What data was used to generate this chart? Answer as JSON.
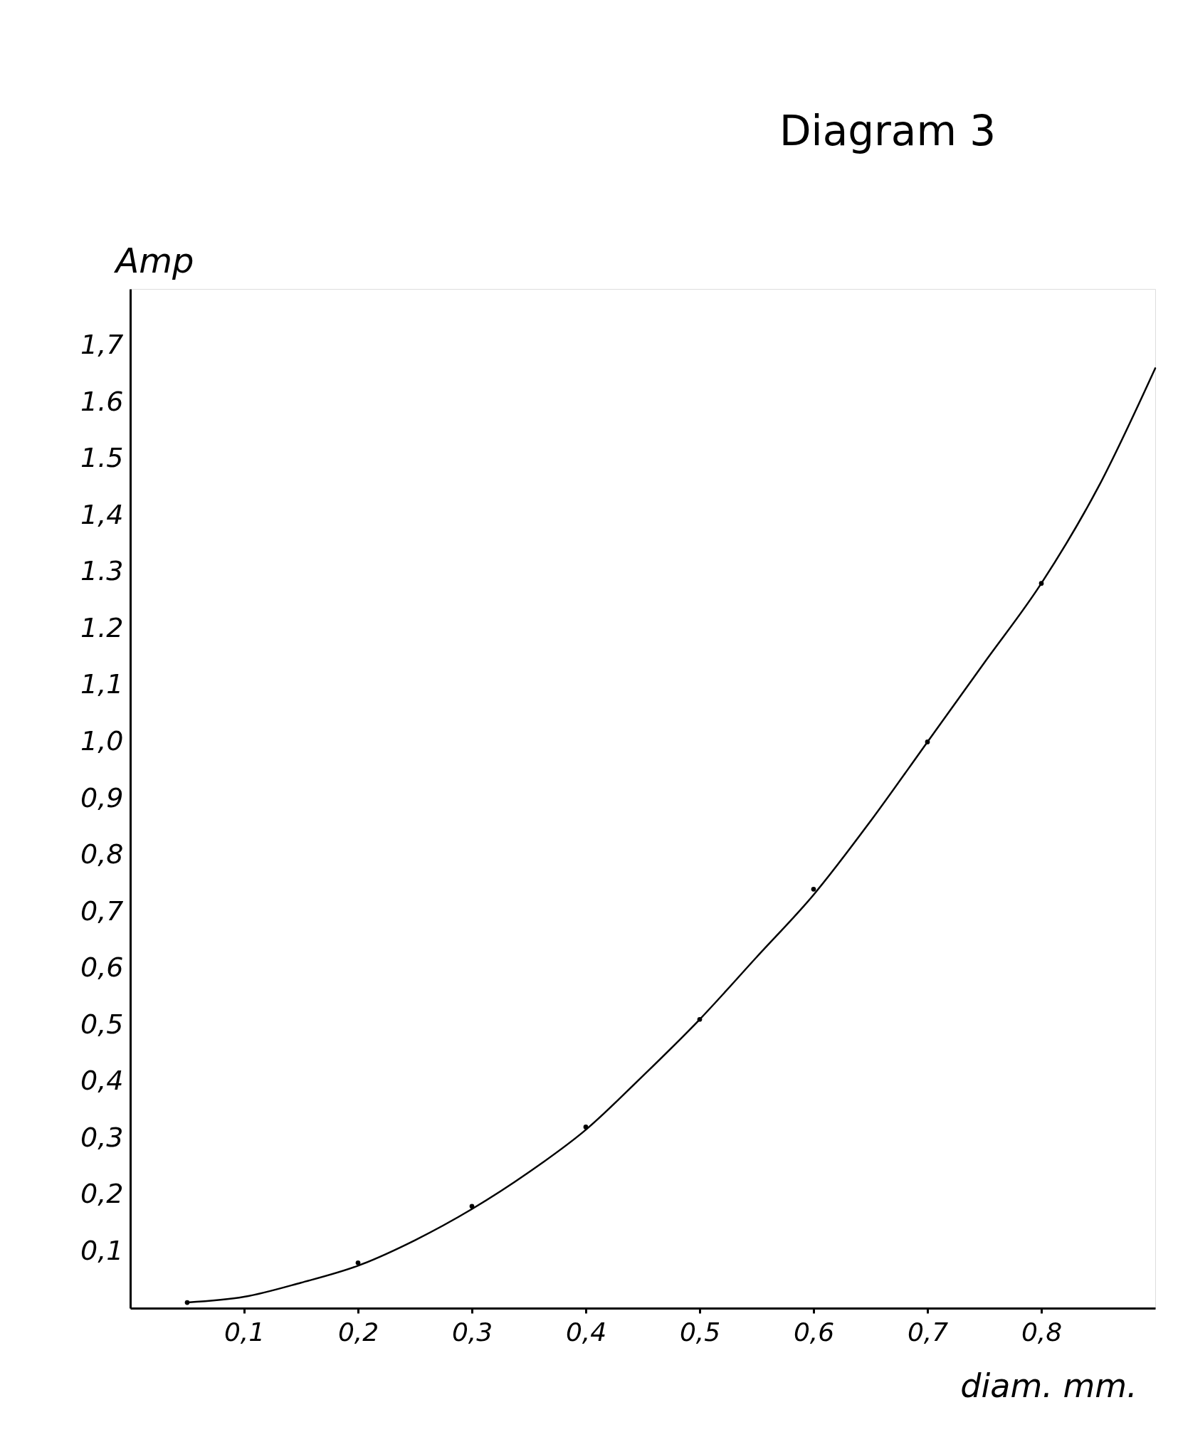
{
  "chart_data": {
    "type": "line",
    "title": "Diagram 3",
    "xlabel": "diam. mm.",
    "ylabel": "Amp",
    "xlim": [
      0,
      0.9
    ],
    "ylim": [
      0,
      1.8
    ],
    "xticks": [
      {
        "value": 0.1,
        "label": "0,1"
      },
      {
        "value": 0.2,
        "label": "0,2"
      },
      {
        "value": 0.3,
        "label": "0,3"
      },
      {
        "value": 0.4,
        "label": "0,4"
      },
      {
        "value": 0.5,
        "label": "0,5"
      },
      {
        "value": 0.6,
        "label": "0,6"
      },
      {
        "value": 0.7,
        "label": "0,7"
      },
      {
        "value": 0.8,
        "label": "0,8"
      }
    ],
    "yticks": [
      {
        "value": 0.1,
        "label": "0,1"
      },
      {
        "value": 0.2,
        "label": "0,2"
      },
      {
        "value": 0.3,
        "label": "0,3"
      },
      {
        "value": 0.4,
        "label": "0,4"
      },
      {
        "value": 0.5,
        "label": "0,5"
      },
      {
        "value": 0.6,
        "label": "0,6"
      },
      {
        "value": 0.7,
        "label": "0,7"
      },
      {
        "value": 0.8,
        "label": "0,8"
      },
      {
        "value": 0.9,
        "label": "0,9"
      },
      {
        "value": 1.0,
        "label": "1,0"
      },
      {
        "value": 1.1,
        "label": "1,1"
      },
      {
        "value": 1.2,
        "label": "1.2"
      },
      {
        "value": 1.3,
        "label": "1.3"
      },
      {
        "value": 1.4,
        "label": "1,4"
      },
      {
        "value": 1.5,
        "label": "1.5"
      },
      {
        "value": 1.6,
        "label": "1.6"
      },
      {
        "value": 1.7,
        "label": "1,7"
      }
    ],
    "grid": false,
    "series": [
      {
        "color": "#000000",
        "x": [
          0.05,
          0.1,
          0.15,
          0.2,
          0.25,
          0.3,
          0.35,
          0.4,
          0.45,
          0.5,
          0.55,
          0.6,
          0.65,
          0.7,
          0.75,
          0.8,
          0.85,
          0.9
        ],
        "values": [
          0.01,
          0.02,
          0.045,
          0.075,
          0.12,
          0.175,
          0.24,
          0.315,
          0.41,
          0.51,
          0.62,
          0.73,
          0.86,
          1.0,
          1.14,
          1.28,
          1.45,
          1.66
        ]
      },
      {
        "type": "scatter",
        "color": "#000000",
        "marker": "circle",
        "x": [
          0.05,
          0.2,
          0.3,
          0.4,
          0.5,
          0.6,
          0.7,
          0.8
        ],
        "values": [
          0.01,
          0.08,
          0.18,
          0.32,
          0.51,
          0.74,
          1.0,
          1.28
        ]
      }
    ]
  }
}
